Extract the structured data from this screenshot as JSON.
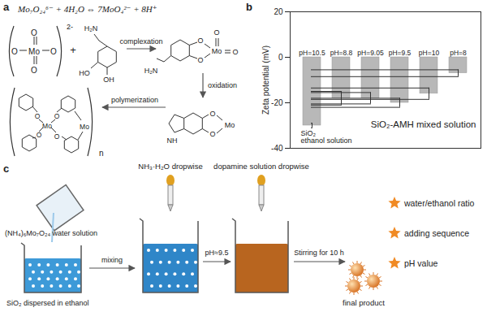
{
  "panel_labels": [
    "a",
    "b",
    "c"
  ],
  "scheme": {
    "equation": "Mo₇O₂₄⁶⁻ + 4H₂O ⇔ 7MoO₄²⁻ + 8H⁺",
    "molybdate": {
      "atoms": [
        "O",
        "O",
        "Mo",
        "O",
        "O"
      ],
      "charge": "2-"
    },
    "plus": "+",
    "dopamine": [
      "H₂N",
      "HO",
      "OH"
    ],
    "complex": [
      "H₂N",
      "O",
      "O",
      "Mo",
      "O",
      "O"
    ],
    "oxidized": [
      "O",
      "O",
      "Mo",
      "NH"
    ],
    "polymer": [
      "Mo",
      "Mo",
      "O",
      "O",
      "O",
      "O"
    ],
    "polymer_index": "n",
    "steps": [
      "complexation",
      "oxidation",
      "polymerization"
    ]
  },
  "chart_data": {
    "type": "bar",
    "categories": [
      "pH=10.5",
      "pH=8.8",
      "pH=9.05",
      "pH=9.5",
      "pH=10",
      "pH=8"
    ],
    "values": [
      -30,
      -18,
      -18,
      -20,
      -16,
      -7
    ],
    "errors": [
      1,
      3,
      2.5,
      2,
      2.5,
      1.5
    ],
    "color": "#b8b8b8",
    "y_label": "Zeta potential (mV)",
    "ylim": [
      -40,
      20
    ],
    "yticks": [
      -40,
      -20,
      0,
      20
    ],
    "tick_labels": "y",
    "annotations": [
      "SiO₂\nethanol solution",
      "SiO₂-AMH mixed solution"
    ]
  },
  "process": {
    "ammonium_molybdate": "(NH₄)₆Mo₇O₂₄ water solution",
    "silica": "SiO₂ dispersed in ethanol",
    "mixing": "mixing",
    "ammonia": "NH₃·H₂O dropwise",
    "dopamine": "dopamine solution dropwise",
    "ph": "pH≈9.5",
    "stirring": "Stirring for 10 h",
    "product": "final product",
    "factors": [
      "water/ethanol ratio",
      "adding sequence",
      "pH value"
    ]
  }
}
